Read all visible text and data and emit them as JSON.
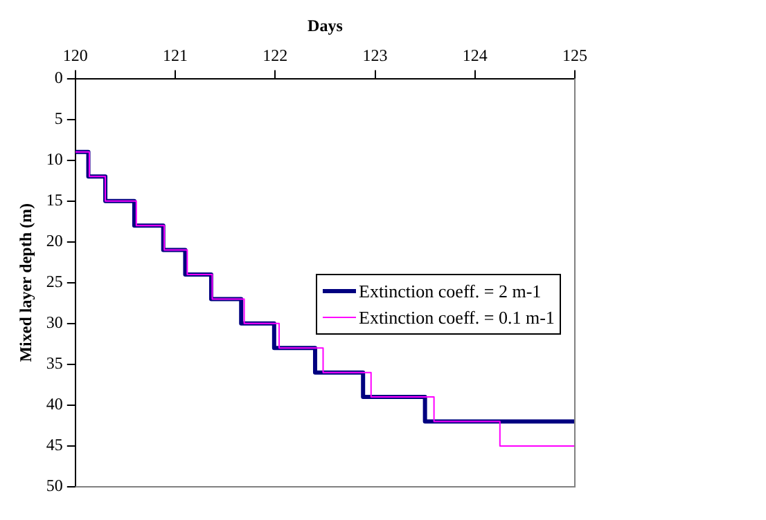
{
  "chart_data": {
    "type": "step",
    "xlabel": "Days",
    "ylabel": "Mixed layer depth (m)",
    "xlim": [
      120,
      125
    ],
    "xticks": [
      120,
      121,
      122,
      123,
      124,
      125
    ],
    "ylim": [
      50,
      0
    ],
    "yticks": [
      0,
      5,
      10,
      15,
      20,
      25,
      30,
      35,
      40,
      45,
      50
    ],
    "grid": false,
    "legend": "right",
    "marker": "none",
    "series": [
      {
        "name": "Extinction coeff. = 2 m-1",
        "color": "#000080",
        "x": [
          120,
          120.13,
          120.3,
          120.59,
          120.88,
          121.1,
          121.36,
          121.66,
          121.99,
          122.4,
          122.88,
          123.5,
          125
        ],
        "values": [
          9,
          12,
          15,
          18,
          21,
          24,
          27,
          30,
          33,
          36,
          39,
          42,
          42
        ]
      },
      {
        "name": "Extinction coeff. = 0.1 m-1",
        "color": "#ff00ff",
        "x": [
          120,
          120.14,
          120.3,
          120.61,
          120.89,
          121.12,
          121.37,
          121.69,
          122.04,
          122.48,
          122.96,
          123.59,
          124.25,
          125
        ],
        "values": [
          9,
          12,
          15,
          18,
          21,
          24,
          27,
          30,
          33,
          36,
          39,
          42,
          45,
          45
        ]
      }
    ]
  }
}
